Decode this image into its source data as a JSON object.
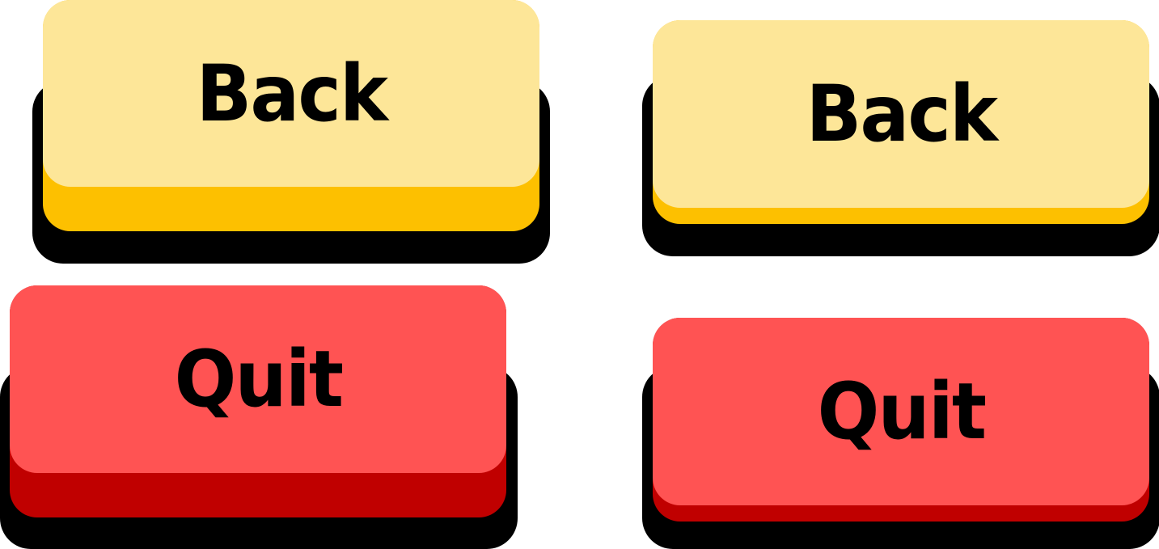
{
  "colors": {
    "background": "#ffffff",
    "shadow": "#000000",
    "yellow_face": "#fde698",
    "yellow_side": "#fdc000",
    "red_face": "#ff5353",
    "red_side": "#c00000",
    "label": "#000000"
  },
  "buttons": {
    "back_normal": {
      "label": "Back",
      "state": "normal"
    },
    "back_pressed": {
      "label": "Back",
      "state": "pressed"
    },
    "quit_normal": {
      "label": "Quit",
      "state": "normal"
    },
    "quit_pressed": {
      "label": "Quit",
      "state": "pressed"
    }
  }
}
